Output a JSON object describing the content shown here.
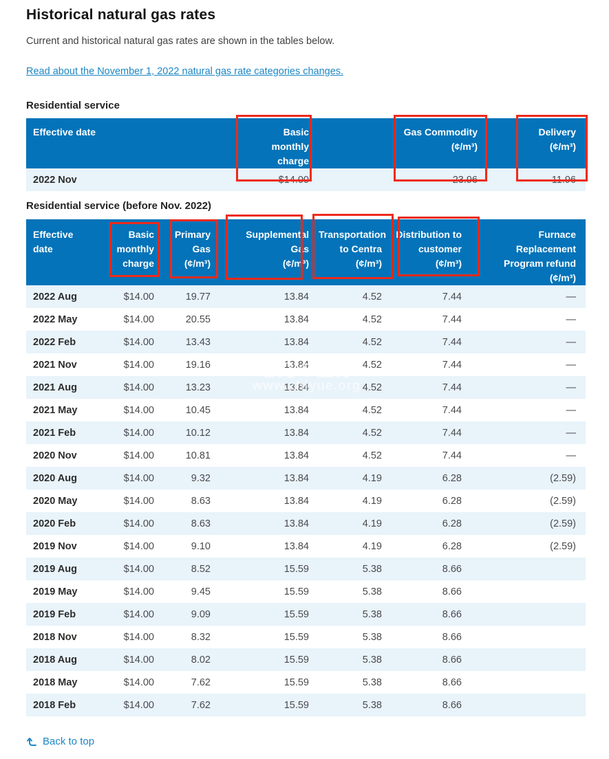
{
  "page": {
    "title": "Historical natural gas rates",
    "intro": "Current and historical natural gas rates are shown in the tables below.",
    "link_label": "Read about the November 1, 2022 natural gas rate categories changes."
  },
  "table1": {
    "caption": "Residential service",
    "headers": [
      "Effective date",
      "Basic monthly\ncharge",
      "Gas Commodity\n(¢/m³)",
      "Delivery\n(¢/m³)"
    ],
    "rows": [
      [
        "2022 Nov",
        "$14.00",
        "23.96",
        "11.96"
      ]
    ]
  },
  "table2": {
    "caption": "Residential service (before Nov. 2022)",
    "headers": [
      "Effective\ndate",
      "Basic\nmonthly\ncharge",
      "Primary\nGas\n(¢/m³)",
      "Supplemental\nGas\n(¢/m³)",
      "Transportation\nto Centra\n(¢/m³)",
      "Distribution to\ncustomer\n(¢/m³)",
      "Furnace\nReplacement\nProgram refund\n(¢/m³)"
    ],
    "rows": [
      [
        "2022 Aug",
        "$14.00",
        "19.77",
        "13.84",
        "4.52",
        "7.44",
        "—"
      ],
      [
        "2022 May",
        "$14.00",
        "20.55",
        "13.84",
        "4.52",
        "7.44",
        "—"
      ],
      [
        "2022 Feb",
        "$14.00",
        "13.43",
        "13.84",
        "4.52",
        "7.44",
        "—"
      ],
      [
        "2021 Nov",
        "$14.00",
        "19.16",
        "13.84",
        "4.52",
        "7.44",
        "—"
      ],
      [
        "2021 Aug",
        "$14.00",
        "13.23",
        "13.84",
        "4.52",
        "7.44",
        "—"
      ],
      [
        "2021 May",
        "$14.00",
        "10.45",
        "13.84",
        "4.52",
        "7.44",
        "—"
      ],
      [
        "2021 Feb",
        "$14.00",
        "10.12",
        "13.84",
        "4.52",
        "7.44",
        "—"
      ],
      [
        "2020 Nov",
        "$14.00",
        "10.81",
        "13.84",
        "4.52",
        "7.44",
        "—"
      ],
      [
        "2020 Aug",
        "$14.00",
        "9.32",
        "13.84",
        "4.19",
        "6.28",
        "(2.59)"
      ],
      [
        "2020 May",
        "$14.00",
        "8.63",
        "13.84",
        "4.19",
        "6.28",
        "(2.59)"
      ],
      [
        "2020 Feb",
        "$14.00",
        "8.63",
        "13.84",
        "4.19",
        "6.28",
        "(2.59)"
      ],
      [
        "2019 Nov",
        "$14.00",
        "9.10",
        "13.84",
        "4.19",
        "6.28",
        "(2.59)"
      ],
      [
        "2019 Aug",
        "$14.00",
        "8.52",
        "15.59",
        "5.38",
        "8.66",
        ""
      ],
      [
        "2019 May",
        "$14.00",
        "9.45",
        "15.59",
        "5.38",
        "8.66",
        ""
      ],
      [
        "2019 Feb",
        "$14.00",
        "9.09",
        "15.59",
        "5.38",
        "8.66",
        ""
      ],
      [
        "2018 Nov",
        "$14.00",
        "8.32",
        "15.59",
        "5.38",
        "8.66",
        ""
      ],
      [
        "2018 Aug",
        "$14.00",
        "8.02",
        "15.59",
        "5.38",
        "8.66",
        ""
      ],
      [
        "2018 May",
        "$14.00",
        "7.62",
        "15.59",
        "5.38",
        "8.66",
        ""
      ],
      [
        "2018 Feb",
        "$14.00",
        "7.62",
        "15.59",
        "5.38",
        "8.66",
        ""
      ]
    ]
  },
  "footer": {
    "back_to_top": "Back to top"
  },
  "watermark": {
    "line1": "老兄の登分",
    "line2": "www.zhiyue.org"
  },
  "colors": {
    "header_blue": "#0473b9",
    "row_alt_blue": "#e8f3fa",
    "annotation_red": "#ee2a1a",
    "link_blue": "#1d87c4"
  }
}
